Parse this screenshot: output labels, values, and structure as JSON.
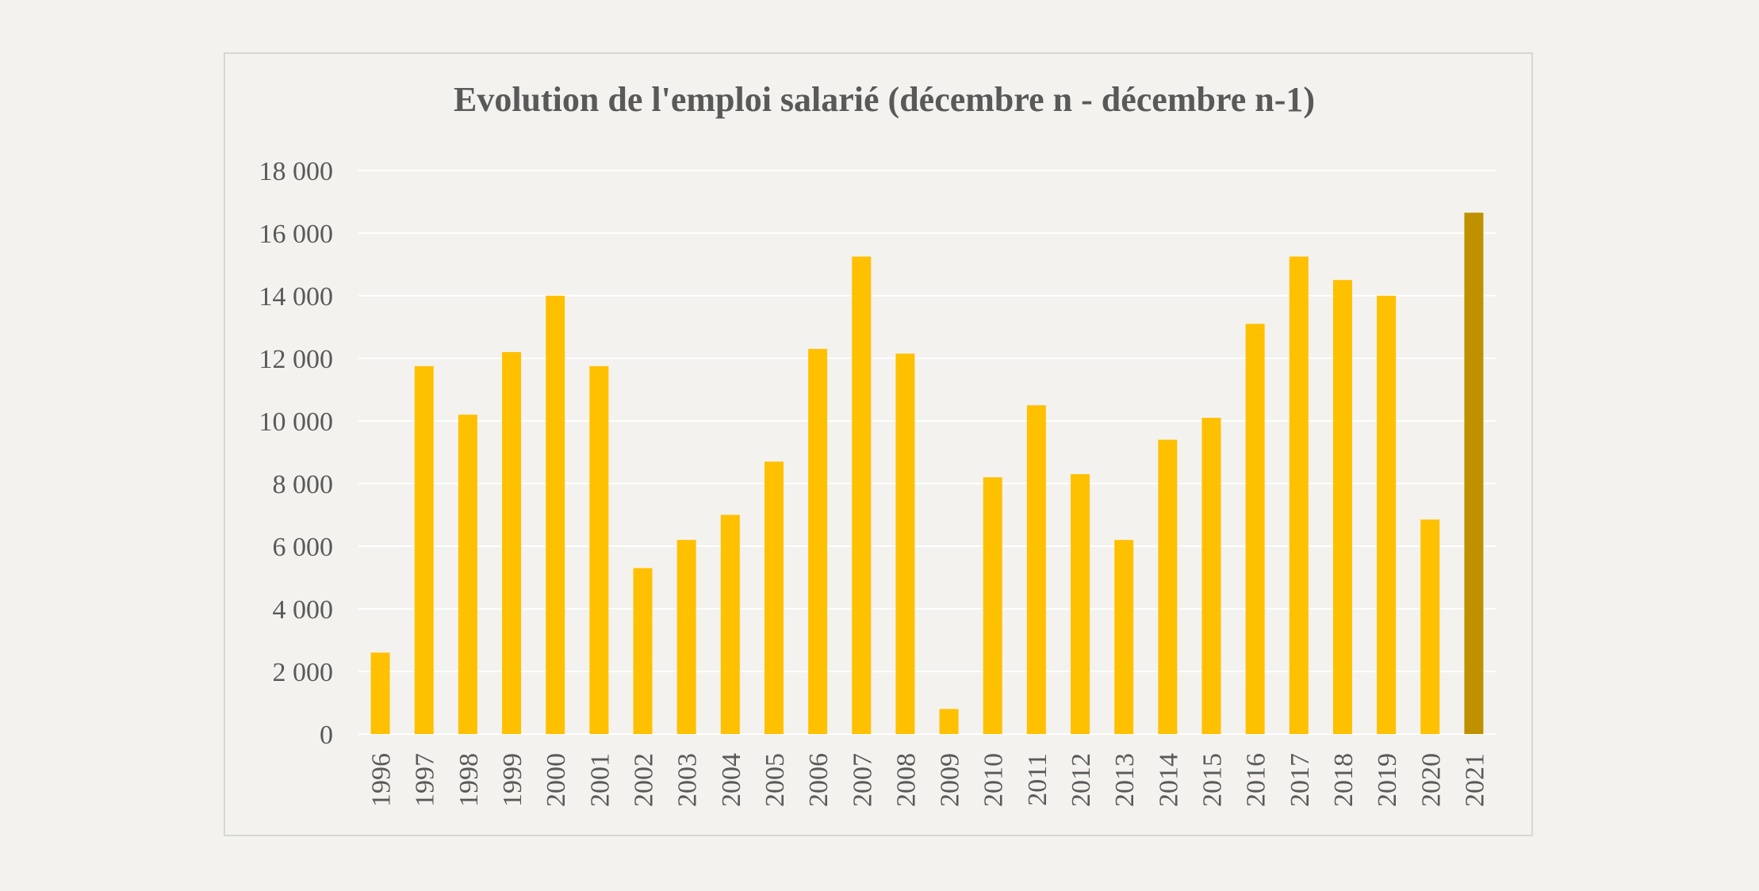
{
  "chart_data": {
    "type": "bar",
    "title": "Evolution de l'emploi salarié (décembre n - décembre n-1)",
    "xlabel": "",
    "ylabel": "",
    "ylim": [
      0,
      18000
    ],
    "yticks": [
      0,
      2000,
      4000,
      6000,
      8000,
      10000,
      12000,
      14000,
      16000,
      18000
    ],
    "ytick_labels": [
      "0",
      "2 000",
      "4 000",
      "6 000",
      "8 000",
      "10 000",
      "12 000",
      "14 000",
      "16 000",
      "18 000"
    ],
    "grid": true,
    "legend": "none",
    "categories": [
      "1996",
      "1997",
      "1998",
      "1999",
      "2000",
      "2001",
      "2002",
      "2003",
      "2004",
      "2005",
      "2006",
      "2007",
      "2008",
      "2009",
      "2010",
      "2011",
      "2012",
      "2013",
      "2014",
      "2015",
      "2016",
      "2017",
      "2018",
      "2019",
      "2020",
      "2021"
    ],
    "values": [
      2600,
      11750,
      10200,
      12200,
      14000,
      11750,
      5300,
      6200,
      7000,
      8700,
      12300,
      15250,
      12150,
      800,
      8200,
      10500,
      8300,
      6200,
      9400,
      10100,
      13100,
      15250,
      14500,
      14000,
      6850,
      16650
    ],
    "colors": {
      "bar": "#ffc000",
      "highlight_bar": "#bf9000",
      "gridline": "#ffffff",
      "text": "#595959",
      "background": "#f3f2ee",
      "frame": "#d6d6d4"
    },
    "highlight_category": "2021"
  }
}
